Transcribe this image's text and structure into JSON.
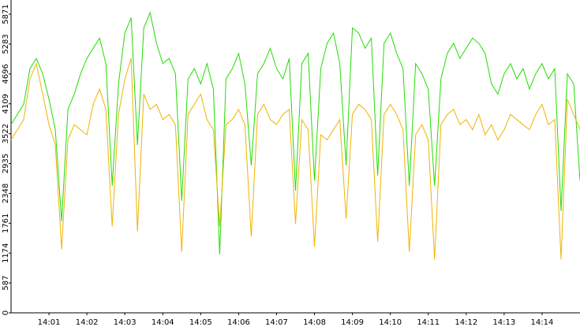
{
  "chart_data": {
    "type": "line",
    "categories": [
      null,
      null,
      null,
      null,
      null,
      null,
      "14:01",
      null,
      null,
      null,
      null,
      null,
      "14:02",
      null,
      null,
      null,
      null,
      null,
      "14:03",
      null,
      null,
      null,
      null,
      null,
      "14:04",
      null,
      null,
      null,
      null,
      null,
      "14:05",
      null,
      null,
      null,
      null,
      null,
      "14:06",
      null,
      null,
      null,
      null,
      null,
      "14:07",
      null,
      null,
      null,
      null,
      null,
      "14:08",
      null,
      null,
      null,
      null,
      null,
      "14:09",
      null,
      null,
      null,
      null,
      null,
      "14:10",
      null,
      null,
      null,
      null,
      null,
      "14:11",
      null,
      null,
      null,
      null,
      null,
      "14:12",
      null,
      null,
      null,
      null,
      null,
      "14:13",
      null,
      null,
      null,
      null,
      null,
      "14:14",
      null,
      null,
      null,
      null,
      null,
      null
    ],
    "series": [
      {
        "color": "#22dd00",
        "values": [
          3700,
          3900,
          4100,
          4800,
          5000,
          4700,
          4200,
          3600,
          1800,
          4000,
          4300,
          4700,
          5000,
          5200,
          5400,
          4900,
          2500,
          4500,
          5500,
          5800,
          3300,
          5600,
          5900,
          5300,
          4900,
          5000,
          4700,
          2200,
          4600,
          4800,
          4500,
          4900,
          4400,
          1150,
          4600,
          4800,
          5100,
          4500,
          2900,
          4700,
          4900,
          5200,
          4800,
          4600,
          5000,
          2400,
          4900,
          5100,
          2600,
          4800,
          5300,
          5500,
          4900,
          2900,
          5600,
          5500,
          5200,
          5400,
          2700,
          5300,
          5500,
          5100,
          4800,
          2500,
          4900,
          4700,
          4400,
          2500,
          4600,
          5100,
          5300,
          5000,
          5200,
          5400,
          5300,
          5100,
          4500,
          4300,
          4700,
          4900,
          4600,
          4800,
          4400,
          4700,
          4900,
          4600,
          4800,
          2000,
          4700,
          4500,
          2600
        ]
      },
      {
        "color": "#f0b400",
        "values": [
          3400,
          3600,
          3800,
          4600,
          4900,
          4300,
          3700,
          3300,
          1250,
          3400,
          3700,
          3600,
          3500,
          4100,
          4400,
          4000,
          1700,
          3900,
          4600,
          5000,
          1600,
          4300,
          4000,
          4100,
          3800,
          3900,
          3700,
          1200,
          3900,
          4100,
          4300,
          3800,
          3600,
          1700,
          3700,
          3800,
          4000,
          3700,
          1500,
          3900,
          4100,
          3800,
          3700,
          3900,
          4000,
          1750,
          3800,
          3600,
          1300,
          3500,
          3400,
          3600,
          3800,
          1850,
          3900,
          4100,
          4000,
          3800,
          1400,
          3900,
          4100,
          3900,
          3600,
          1200,
          3500,
          3700,
          3400,
          1050,
          3700,
          3900,
          4000,
          3700,
          3800,
          3600,
          3900,
          3500,
          3700,
          3400,
          3600,
          3900,
          3800,
          3700,
          3600,
          3900,
          4100,
          3700,
          3800,
          1050,
          4200,
          3900,
          3600
        ]
      }
    ],
    "ylim": [
      0,
      6150
    ],
    "yticks": [
      0,
      587,
      1174,
      1761,
      2348,
      2935,
      3522,
      4109,
      4696,
      5283,
      5871
    ]
  }
}
